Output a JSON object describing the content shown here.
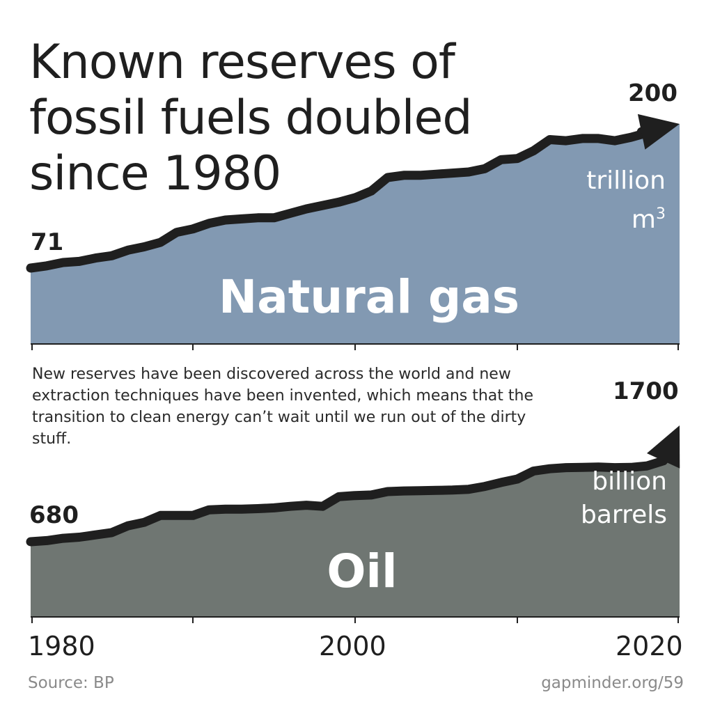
{
  "title": "Known reserves of fossil fuels doubled since 1980",
  "subtitle": "New reserves have been discovered across the world and new extraction techniques have been invented, which means that the transition to clean energy can’t wait until we run out of the dirty stuff.",
  "source": "Source: BP",
  "credit": "gapminder.org/59",
  "colors": {
    "gas": "#8299b2",
    "oil": "#6f7672",
    "line": "#1f1f1f"
  },
  "chart_data": [
    {
      "type": "area",
      "name": "Natural gas",
      "unit_line1": "trillion",
      "unit_line2": "m",
      "unit_sup": "3",
      "start_label": "71",
      "end_label": "200",
      "x": [
        1980,
        1981,
        1982,
        1983,
        1984,
        1985,
        1986,
        1987,
        1988,
        1989,
        1990,
        1991,
        1992,
        1993,
        1994,
        1995,
        1996,
        1997,
        1998,
        1999,
        2000,
        2001,
        2002,
        2003,
        2004,
        2005,
        2006,
        2007,
        2008,
        2009,
        2010,
        2011,
        2012,
        2013,
        2014,
        2015,
        2016,
        2017,
        2018,
        2019,
        2020
      ],
      "values": [
        71,
        73,
        76,
        77,
        80,
        82,
        87,
        90,
        94,
        103,
        106,
        111,
        114,
        115,
        116,
        116,
        120,
        124,
        127,
        130,
        134,
        140,
        152,
        154,
        154,
        155,
        156,
        157,
        160,
        168,
        169,
        176,
        186,
        185,
        187,
        187,
        185,
        188,
        192,
        197,
        200
      ],
      "ylim": [
        0,
        210
      ],
      "xticks": [
        1980,
        1990,
        2000,
        2010,
        2020
      ]
    },
    {
      "type": "area",
      "name": "Oil",
      "unit_line1": "billion",
      "unit_line2": "barrels",
      "start_label": "680",
      "end_label": "1700",
      "x": [
        1980,
        1981,
        1982,
        1983,
        1984,
        1985,
        1986,
        1987,
        1988,
        1989,
        1990,
        1991,
        1992,
        1993,
        1994,
        1995,
        1996,
        1997,
        1998,
        1999,
        2000,
        2001,
        2002,
        2003,
        2004,
        2005,
        2006,
        2007,
        2008,
        2009,
        2010,
        2011,
        2012,
        2013,
        2014,
        2015,
        2016,
        2017,
        2018,
        2019,
        2020
      ],
      "values": [
        680,
        690,
        710,
        720,
        740,
        760,
        820,
        850,
        910,
        910,
        910,
        960,
        965,
        965,
        970,
        977,
        990,
        1000,
        990,
        1075,
        1085,
        1090,
        1120,
        1125,
        1128,
        1130,
        1133,
        1140,
        1165,
        1200,
        1230,
        1300,
        1320,
        1330,
        1332,
        1335,
        1330,
        1332,
        1345,
        1390,
        1700
      ],
      "ylim": [
        0,
        1750
      ],
      "xticks": [
        1980,
        1990,
        2000,
        2010,
        2020
      ],
      "xticklabels": [
        "1980",
        "",
        "2000",
        "",
        "2020"
      ]
    }
  ]
}
